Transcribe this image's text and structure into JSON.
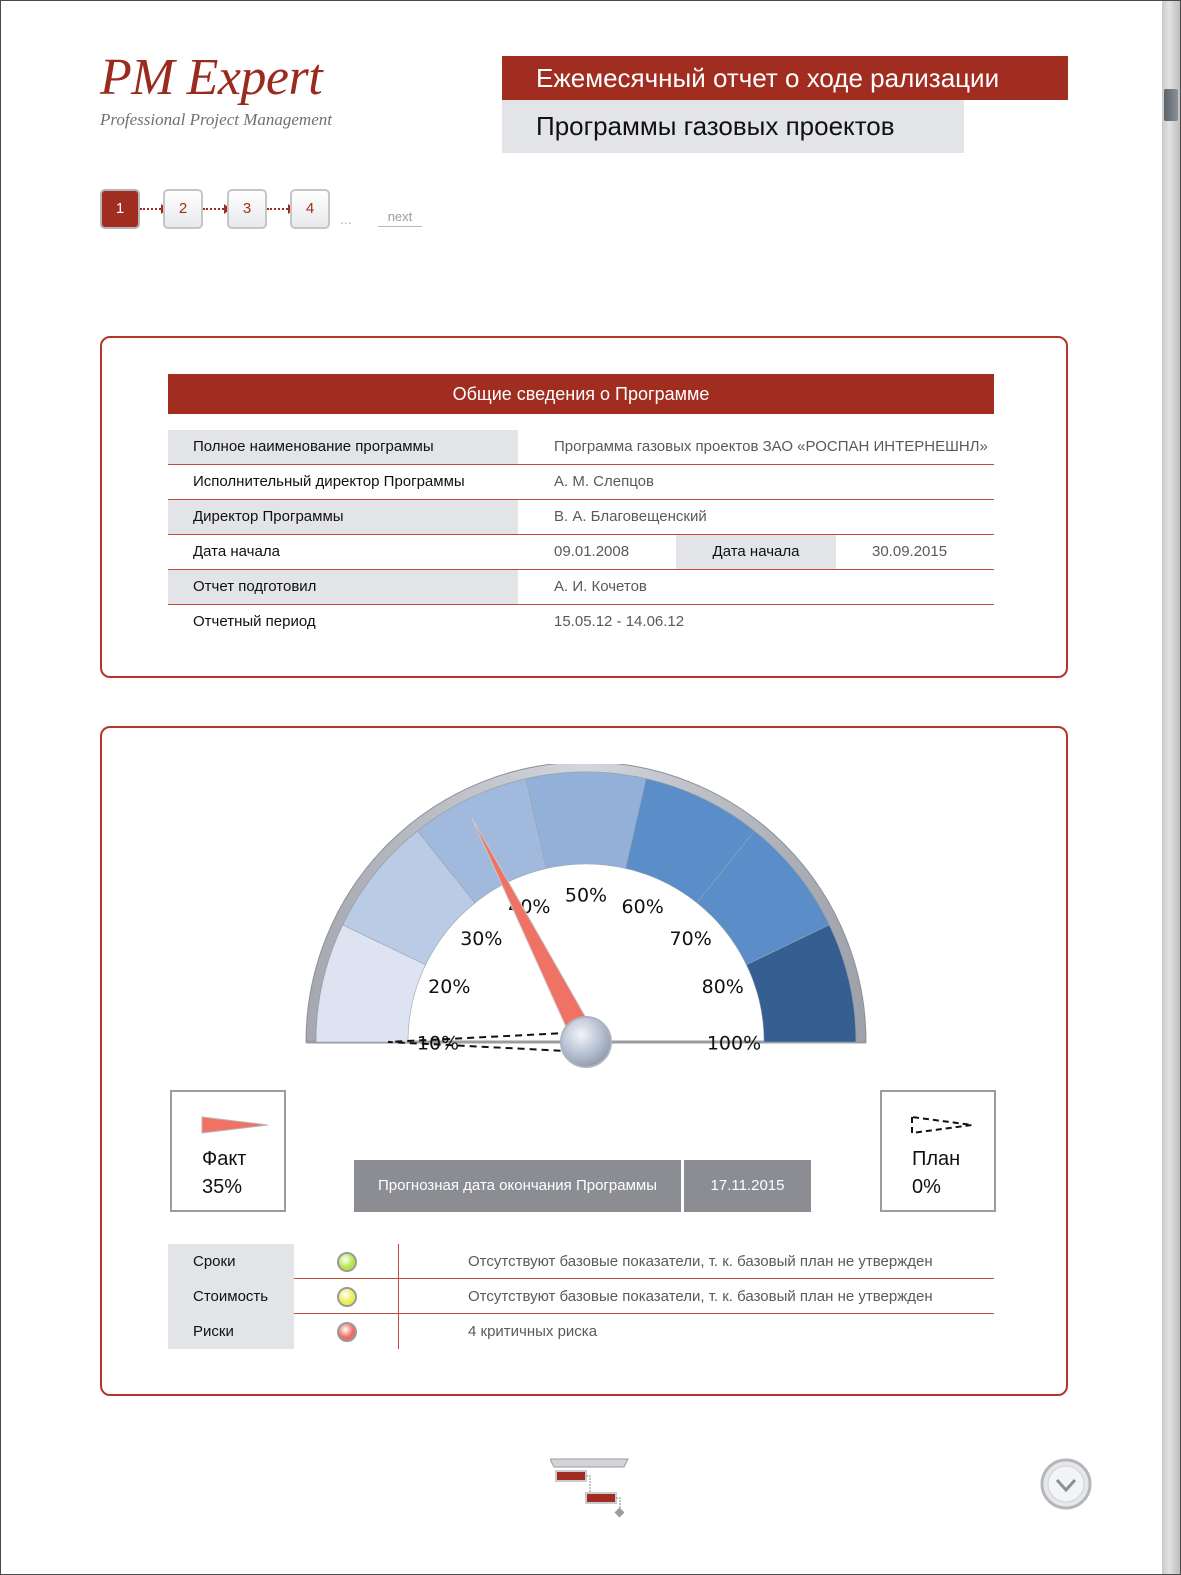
{
  "logo": {
    "title": "PM Expert",
    "subtitle": "Professional Project Management",
    "color": "#9b2a1e"
  },
  "header": {
    "line1": "Ежемесячный отчет о ходе рализации",
    "line2": "Программы газовых проектов",
    "accent": "#a02d20"
  },
  "pager": {
    "pages": [
      "1",
      "2",
      "3",
      "4"
    ],
    "active": "1",
    "ellipsis": "...",
    "next": "next"
  },
  "info": {
    "title": "Общие сведения о Программе",
    "rows": [
      {
        "label": "Полное наименование программы",
        "value": "Программа газовых проектов ЗАО «РОСПАН ИНТЕРНЕШНЛ»"
      },
      {
        "label": "Исполнительный директор Программы",
        "value": "А. М. Слепцов"
      },
      {
        "label": "Директор Программы",
        "value": "В. А. Благовещенский"
      },
      {
        "label": "Дата начала",
        "value": "09.01.2008",
        "label2": "Дата начала",
        "value2": "30.09.2015"
      },
      {
        "label": "Отчет подготовил",
        "value": "А. И. Кочетов"
      },
      {
        "label": "Отчетный период",
        "value": "15.05.12 - 14.06.12"
      }
    ]
  },
  "gauge": {
    "ticks": [
      "10%",
      "20%",
      "30%",
      "40%",
      "50%",
      "60%",
      "70%",
      "80%",
      "100%"
    ],
    "fact_percent": 35,
    "plan_percent": 0,
    "segment_colors": [
      "#dde3f0",
      "#b9cbe5",
      "#a0b9dc",
      "#93b1d8",
      "#5b8ec8",
      "#5b8ec8",
      "#355f91"
    ],
    "needle_color": "#f07265"
  },
  "legend": {
    "fact": {
      "name": "Факт",
      "value": "35%",
      "icon": "fact-needle-icon"
    },
    "plan": {
      "name": "План",
      "value": "0%",
      "icon": "plan-needle-icon"
    }
  },
  "forecast": {
    "label": "Прогнозная дата окончания Программы",
    "date": "17.11.2015"
  },
  "status": [
    {
      "label": "Сроки",
      "light": "#b4e64a",
      "text": "Отсутствуют базовые показатели, т. к. базовый план не утвержден"
    },
    {
      "label": "Стоимость",
      "light": "#ecee52",
      "text": "Отсутствуют базовые показатели, т. к. базовый план не утвержден"
    },
    {
      "label": "Риски",
      "light": "#f06b5f",
      "text": "4 критичных риска"
    }
  ],
  "icons": {
    "gantt": "gantt-chart-icon",
    "down": "chevron-down-icon"
  }
}
